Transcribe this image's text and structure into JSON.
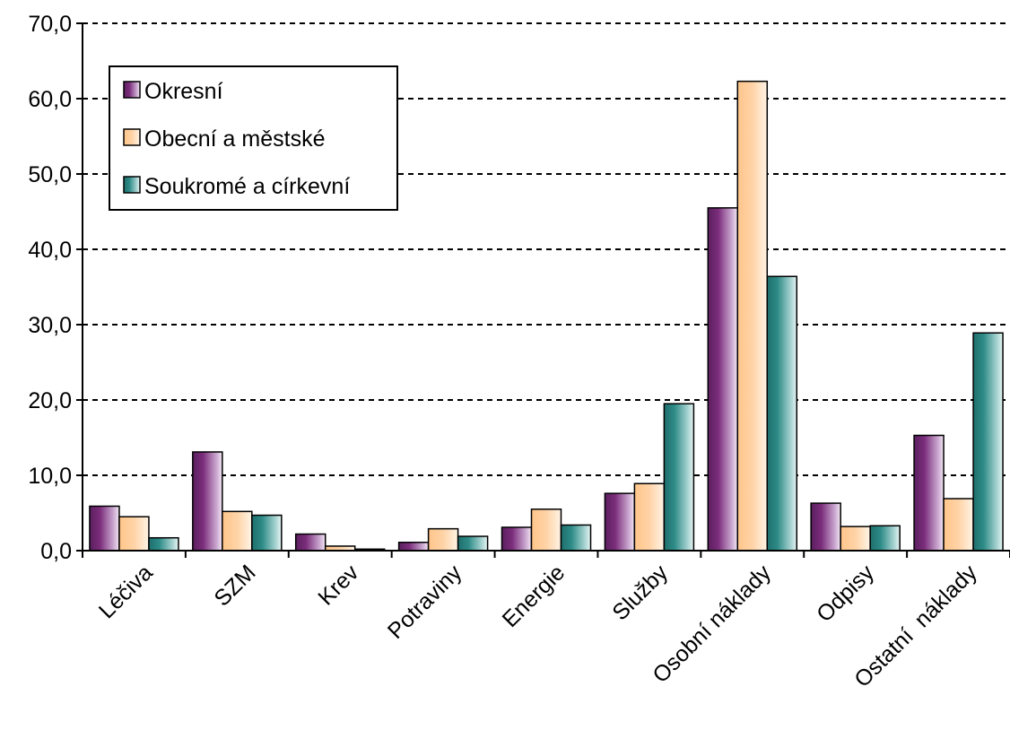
{
  "chart_data": {
    "type": "bar",
    "title": "",
    "xlabel": "",
    "ylabel": "",
    "ylim": [
      0,
      70
    ],
    "y_ticks": [
      "0,0",
      "10,0",
      "20,0",
      "30,0",
      "40,0",
      "50,0",
      "60,0",
      "70,0"
    ],
    "grid": "horizontal dashed",
    "legend_position": "top-left",
    "categories": [
      "Léčiva",
      "SZM",
      "Krev",
      "Potraviny",
      "Energie",
      "Služby",
      "Osobní náklady",
      "Odpisy",
      "Ostatní  náklady"
    ],
    "series": [
      {
        "name": "Okresní",
        "color": "#7B2D7B",
        "values": [
          5.9,
          13.1,
          2.2,
          1.1,
          3.1,
          7.6,
          45.5,
          6.3,
          15.3
        ]
      },
      {
        "name": "Obecní a městské",
        "color": "#FFCC99",
        "values": [
          4.5,
          5.2,
          0.6,
          2.9,
          5.5,
          8.9,
          62.3,
          3.2,
          6.9
        ]
      },
      {
        "name": "Soukromé a církevní",
        "color": "#2E8B87",
        "values": [
          1.7,
          4.7,
          0.2,
          1.9,
          3.4,
          19.5,
          36.4,
          3.3,
          28.9
        ]
      }
    ]
  }
}
